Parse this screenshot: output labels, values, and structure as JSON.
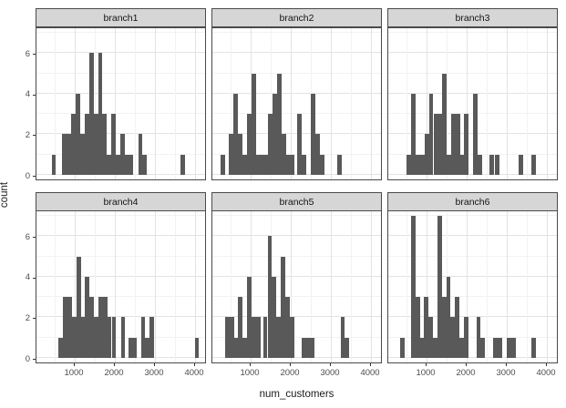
{
  "figure": {
    "kind": "ggplot-style faceted histogram",
    "x_axis_title": "num_customers",
    "y_axis_title": "count"
  },
  "colors": {
    "bar_fill": "#595959",
    "panel_background": "#ffffff",
    "panel_border": "#4a4a4a",
    "strip_background": "#d6d6d6",
    "strip_border": "#4a4a4a",
    "grid_major": "#e3e3e3",
    "grid_minor": "#f2f2f2",
    "tick_text": "#4d4d4d",
    "title_text": "#1a1a1a"
  },
  "chart_data": {
    "type": "bar",
    "subtype": "faceted-histogram",
    "title": "",
    "xlabel": "num_customers",
    "ylabel": "count",
    "x_ticks": [
      1000,
      2000,
      3000,
      4000
    ],
    "x_minor_ticks": [
      500,
      1500,
      2500,
      3500
    ],
    "y_ticks": [
      0,
      2,
      4,
      6
    ],
    "y_minor_gridlines": [
      1,
      3,
      5,
      7
    ],
    "xlim": [
      45,
      4295
    ],
    "ylim": [
      -0.35,
      7.35
    ],
    "binwidth": 110,
    "grid": true,
    "legend": "none",
    "facet_layout": {
      "rows": 2,
      "cols": 3
    },
    "facets": [
      {
        "label": "branch1",
        "bars": [
          {
            "x": 420,
            "count": 1
          },
          {
            "x": 690,
            "count": 2
          },
          {
            "x": 800,
            "count": 2
          },
          {
            "x": 910,
            "count": 3
          },
          {
            "x": 1030,
            "count": 4
          },
          {
            "x": 1140,
            "count": 2
          },
          {
            "x": 1250,
            "count": 3
          },
          {
            "x": 1360,
            "count": 6
          },
          {
            "x": 1470,
            "count": 3
          },
          {
            "x": 1580,
            "count": 6
          },
          {
            "x": 1690,
            "count": 3
          },
          {
            "x": 1800,
            "count": 1
          },
          {
            "x": 1910,
            "count": 3
          },
          {
            "x": 2020,
            "count": 1
          },
          {
            "x": 2130,
            "count": 2
          },
          {
            "x": 2240,
            "count": 1
          },
          {
            "x": 2350,
            "count": 1
          },
          {
            "x": 2580,
            "count": 2
          },
          {
            "x": 2690,
            "count": 1
          },
          {
            "x": 3640,
            "count": 1
          }
        ]
      },
      {
        "label": "branch2",
        "bars": [
          {
            "x": 250,
            "count": 1
          },
          {
            "x": 460,
            "count": 2
          },
          {
            "x": 570,
            "count": 4
          },
          {
            "x": 680,
            "count": 2
          },
          {
            "x": 800,
            "count": 1
          },
          {
            "x": 910,
            "count": 3
          },
          {
            "x": 1020,
            "count": 5
          },
          {
            "x": 1130,
            "count": 1
          },
          {
            "x": 1240,
            "count": 1
          },
          {
            "x": 1350,
            "count": 1
          },
          {
            "x": 1440,
            "count": 3
          },
          {
            "x": 1550,
            "count": 4
          },
          {
            "x": 1660,
            "count": 5
          },
          {
            "x": 1770,
            "count": 2
          },
          {
            "x": 1880,
            "count": 1
          },
          {
            "x": 1990,
            "count": 1
          },
          {
            "x": 2160,
            "count": 3
          },
          {
            "x": 2270,
            "count": 1
          },
          {
            "x": 2500,
            "count": 4
          },
          {
            "x": 2610,
            "count": 2
          },
          {
            "x": 2720,
            "count": 1
          },
          {
            "x": 3160,
            "count": 1
          }
        ]
      },
      {
        "label": "branch3",
        "bars": [
          {
            "x": 510,
            "count": 1
          },
          {
            "x": 620,
            "count": 4
          },
          {
            "x": 730,
            "count": 1
          },
          {
            "x": 840,
            "count": 1
          },
          {
            "x": 950,
            "count": 2
          },
          {
            "x": 1060,
            "count": 4
          },
          {
            "x": 1170,
            "count": 3
          },
          {
            "x": 1280,
            "count": 3
          },
          {
            "x": 1390,
            "count": 5
          },
          {
            "x": 1500,
            "count": 1
          },
          {
            "x": 1610,
            "count": 3
          },
          {
            "x": 1720,
            "count": 3
          },
          {
            "x": 1830,
            "count": 1
          },
          {
            "x": 1940,
            "count": 3
          },
          {
            "x": 2160,
            "count": 4
          },
          {
            "x": 2270,
            "count": 1
          },
          {
            "x": 2570,
            "count": 1
          },
          {
            "x": 2700,
            "count": 1
          },
          {
            "x": 3300,
            "count": 1
          },
          {
            "x": 3610,
            "count": 1
          }
        ]
      },
      {
        "label": "branch4",
        "bars": [
          {
            "x": 600,
            "count": 1
          },
          {
            "x": 710,
            "count": 3
          },
          {
            "x": 820,
            "count": 3
          },
          {
            "x": 930,
            "count": 2
          },
          {
            "x": 1040,
            "count": 5
          },
          {
            "x": 1150,
            "count": 2
          },
          {
            "x": 1260,
            "count": 4
          },
          {
            "x": 1370,
            "count": 3
          },
          {
            "x": 1480,
            "count": 2
          },
          {
            "x": 1590,
            "count": 3
          },
          {
            "x": 1700,
            "count": 3
          },
          {
            "x": 1810,
            "count": 2
          },
          {
            "x": 1920,
            "count": 2
          },
          {
            "x": 2150,
            "count": 2
          },
          {
            "x": 2330,
            "count": 1
          },
          {
            "x": 2440,
            "count": 1
          },
          {
            "x": 2650,
            "count": 2
          },
          {
            "x": 2760,
            "count": 1
          },
          {
            "x": 2870,
            "count": 2
          },
          {
            "x": 3990,
            "count": 1
          }
        ]
      },
      {
        "label": "branch5",
        "bars": [
          {
            "x": 360,
            "count": 2
          },
          {
            "x": 470,
            "count": 2
          },
          {
            "x": 580,
            "count": 1
          },
          {
            "x": 690,
            "count": 3
          },
          {
            "x": 800,
            "count": 1
          },
          {
            "x": 910,
            "count": 4
          },
          {
            "x": 1020,
            "count": 2
          },
          {
            "x": 1130,
            "count": 2
          },
          {
            "x": 1310,
            "count": 2
          },
          {
            "x": 1420,
            "count": 6
          },
          {
            "x": 1530,
            "count": 4
          },
          {
            "x": 1640,
            "count": 2
          },
          {
            "x": 1750,
            "count": 5
          },
          {
            "x": 1860,
            "count": 3
          },
          {
            "x": 1970,
            "count": 2
          },
          {
            "x": 2270,
            "count": 1
          },
          {
            "x": 2380,
            "count": 1
          },
          {
            "x": 2490,
            "count": 1
          },
          {
            "x": 3240,
            "count": 2
          },
          {
            "x": 3350,
            "count": 1
          }
        ]
      },
      {
        "label": "branch6",
        "bars": [
          {
            "x": 340,
            "count": 1
          },
          {
            "x": 610,
            "count": 7
          },
          {
            "x": 720,
            "count": 3
          },
          {
            "x": 830,
            "count": 1
          },
          {
            "x": 940,
            "count": 3
          },
          {
            "x": 1050,
            "count": 2
          },
          {
            "x": 1160,
            "count": 1
          },
          {
            "x": 1270,
            "count": 7
          },
          {
            "x": 1380,
            "count": 3
          },
          {
            "x": 1490,
            "count": 4
          },
          {
            "x": 1600,
            "count": 2
          },
          {
            "x": 1710,
            "count": 3
          },
          {
            "x": 1820,
            "count": 1
          },
          {
            "x": 1930,
            "count": 2
          },
          {
            "x": 2240,
            "count": 2
          },
          {
            "x": 2350,
            "count": 1
          },
          {
            "x": 2660,
            "count": 1
          },
          {
            "x": 2770,
            "count": 1
          },
          {
            "x": 3000,
            "count": 1
          },
          {
            "x": 3110,
            "count": 1
          },
          {
            "x": 3620,
            "count": 1
          }
        ]
      }
    ]
  }
}
